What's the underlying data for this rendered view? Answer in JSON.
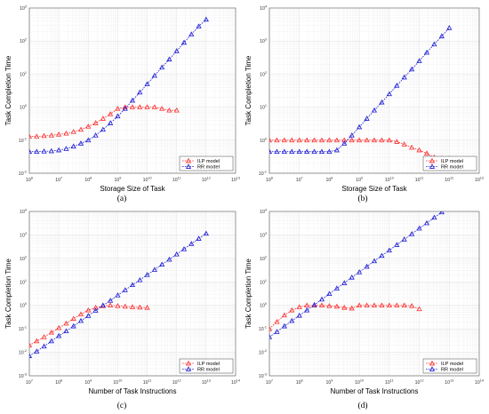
{
  "colors": {
    "ilp": "#ff2a2a",
    "rr": "#1a1ad6",
    "grid": "#e3e3e3",
    "axis": "#555555"
  },
  "chart_data": [
    {
      "id": "a",
      "type": "line",
      "caption": "(a)",
      "xlabel": "Storage Size of Task",
      "ylabel": "Task Completion Time",
      "xscale": "log",
      "yscale": "log",
      "xlim": [
        1000000,
        10000000000000
      ],
      "ylim": [
        0.01,
        1000
      ],
      "xticks": [
        "10^6",
        "10^7",
        "10^8",
        "10^9",
        "10^10",
        "10^11",
        "10^12",
        "10^13"
      ],
      "yticks": [
        "10^-2",
        "10^-1",
        "10^0",
        "10^1",
        "10^2",
        "10^3"
      ],
      "grid": true,
      "legend_position": "bottom-right",
      "series": [
        {
          "name": "ILP model",
          "color_key": "ilp",
          "x": [
            1000000.0,
            1780000.0,
            3160000.0,
            5620000.0,
            10000000.0,
            17800000.0,
            31600000.0,
            56200000.0,
            100000000.0,
            178000000.0,
            316000000.0,
            562000000.0,
            1000000000.0,
            1780000000.0,
            3160000000.0,
            5620000000.0,
            10000000000.0,
            17800000000.0,
            31600000000.0,
            56200000000.0,
            100000000000.0
          ],
          "y": [
            0.13,
            0.13,
            0.135,
            0.14,
            0.15,
            0.16,
            0.18,
            0.21,
            0.26,
            0.33,
            0.45,
            0.62,
            0.9,
            1.0,
            1.0,
            1.0,
            1.0,
            1.0,
            0.9,
            0.8,
            0.8
          ]
        },
        {
          "name": "RR model",
          "color_key": "rr",
          "x": [
            1000000.0,
            1780000.0,
            3160000.0,
            5620000.0,
            10000000.0,
            17800000.0,
            31600000.0,
            56200000.0,
            100000000.0,
            178000000.0,
            316000000.0,
            562000000.0,
            1000000000.0,
            1780000000.0,
            3160000000.0,
            5620000000.0,
            10000000000.0,
            17800000000.0,
            31600000000.0,
            56200000000.0,
            100000000000.0,
            178000000000.0,
            316000000000.0,
            562000000000.0,
            1000000000000.0
          ],
          "y": [
            0.045,
            0.045,
            0.046,
            0.047,
            0.05,
            0.055,
            0.065,
            0.08,
            0.1,
            0.14,
            0.21,
            0.33,
            0.53,
            0.9,
            1.6,
            2.8,
            5,
            9,
            16,
            28,
            50,
            90,
            160,
            280,
            450
          ]
        }
      ]
    },
    {
      "id": "b",
      "type": "line",
      "caption": "(b)",
      "xlabel": "Storage Size of Task",
      "ylabel": "Task Completion Time",
      "xscale": "log",
      "yscale": "log",
      "xlim": [
        1000000,
        10000000000000
      ],
      "ylim": [
        0.1,
        10000
      ],
      "xticks": [
        "10^6",
        "10^7",
        "10^8",
        "10^9",
        "10^10",
        "10^11",
        "10^12",
        "10^13"
      ],
      "yticks": [
        "10^-1",
        "10^0",
        "10^1",
        "10^2",
        "10^3",
        "10^4"
      ],
      "grid": true,
      "legend_position": "bottom-right",
      "series": [
        {
          "name": "ILP model",
          "color_key": "ilp",
          "x": [
            1000000.0,
            1780000.0,
            3160000.0,
            5620000.0,
            10000000.0,
            17800000.0,
            31600000.0,
            56200000.0,
            100000000.0,
            178000000.0,
            316000000.0,
            562000000.0,
            1000000000.0,
            1780000000.0,
            3160000000.0,
            5620000000.0,
            10000000000.0,
            17800000000.0,
            31600000000.0,
            56200000000.0,
            100000000000.0,
            178000000000.0,
            316000000000.0,
            562000000000.0,
            1000000000000.0
          ],
          "y": [
            1,
            1,
            1,
            1,
            1,
            1,
            1,
            1,
            1,
            1,
            1,
            1,
            1,
            1,
            1,
            1,
            1,
            0.9,
            0.75,
            0.6,
            0.5,
            0.4,
            0.3,
            0.28,
            0.28
          ]
        },
        {
          "name": "RR model",
          "color_key": "rr",
          "x": [
            1000000.0,
            1780000.0,
            3160000.0,
            5620000.0,
            10000000.0,
            17800000.0,
            31600000.0,
            56200000.0,
            100000000.0,
            178000000.0,
            316000000.0,
            562000000.0,
            1000000000.0,
            1780000000.0,
            3160000000.0,
            5620000000.0,
            10000000000.0,
            17800000000.0,
            31600000000.0,
            56200000000.0,
            100000000000.0,
            178000000000.0,
            316000000000.0,
            562000000000.0,
            1000000000000.0
          ],
          "y": [
            0.45,
            0.45,
            0.45,
            0.45,
            0.45,
            0.45,
            0.45,
            0.45,
            0.45,
            0.5,
            0.8,
            1.4,
            2.5,
            4.5,
            8,
            14,
            25,
            45,
            80,
            140,
            250,
            450,
            800,
            1400,
            2500
          ]
        }
      ]
    },
    {
      "id": "c",
      "type": "line",
      "caption": "(c)",
      "xlabel": "Number of Task Instructions",
      "ylabel": "Task Completion Time",
      "xscale": "log",
      "yscale": "log",
      "xlim": [
        10000000,
        100000000000000
      ],
      "ylim": [
        0.001,
        10000
      ],
      "xticks": [
        "10^7",
        "10^8",
        "10^9",
        "10^10",
        "10^11",
        "10^12",
        "10^13",
        "10^14"
      ],
      "yticks": [
        "10^-3",
        "10^-2",
        "10^-1",
        "10^0",
        "10^1",
        "10^2",
        "10^3",
        "10^4"
      ],
      "grid": true,
      "legend_position": "bottom-right",
      "series": [
        {
          "name": "ILP model",
          "color_key": "ilp",
          "x": [
            10000000.0,
            17800000.0,
            31600000.0,
            56200000.0,
            100000000.0,
            178000000.0,
            316000000.0,
            562000000.0,
            1000000000.0,
            1780000000.0,
            3160000000.0,
            5620000000.0,
            10000000000.0,
            17800000000.0,
            31600000000.0,
            56200000000.0,
            100000000000.0
          ],
          "y": [
            0.02,
            0.03,
            0.045,
            0.07,
            0.11,
            0.17,
            0.27,
            0.42,
            0.62,
            0.8,
            0.95,
            1.0,
            0.95,
            0.9,
            0.85,
            0.82,
            0.8
          ]
        },
        {
          "name": "RR model",
          "color_key": "rr",
          "x": [
            10000000.0,
            17800000.0,
            31600000.0,
            56200000.0,
            100000000.0,
            178000000.0,
            316000000.0,
            562000000.0,
            1000000000.0,
            1780000000.0,
            3160000000.0,
            5620000000.0,
            10000000000.0,
            17800000000.0,
            31600000000.0,
            56200000000.0,
            100000000000.0,
            178000000000.0,
            316000000000.0,
            562000000000.0,
            1000000000000.0,
            1780000000000.0,
            3160000000000.0,
            5620000000000.0,
            10000000000000.0
          ],
          "y": [
            0.007,
            0.011,
            0.018,
            0.03,
            0.05,
            0.08,
            0.13,
            0.22,
            0.36,
            0.6,
            1.0,
            1.6,
            2.7,
            4.5,
            7.4,
            12,
            20,
            33,
            55,
            90,
            150,
            250,
            420,
            700,
            1150
          ]
        }
      ]
    },
    {
      "id": "d",
      "type": "line",
      "caption": "(d)",
      "xlabel": "Number of Task Instructions",
      "ylabel": "Task Completion Time",
      "xscale": "log",
      "yscale": "log",
      "xlim": [
        10000000,
        100000000000000
      ],
      "ylim": [
        0.001,
        10000
      ],
      "xticks": [
        "10^7",
        "10^8",
        "10^9",
        "10^10",
        "10^11",
        "10^12",
        "10^13",
        "10^14"
      ],
      "yticks": [
        "10^-3",
        "10^-2",
        "10^-1",
        "10^0",
        "10^1",
        "10^2",
        "10^3",
        "10^4"
      ],
      "grid": true,
      "legend_position": "bottom-right",
      "series": [
        {
          "name": "ILP model",
          "color_key": "ilp",
          "x": [
            10000000.0,
            17800000.0,
            31600000.0,
            56200000.0,
            100000000.0,
            178000000.0,
            316000000.0,
            562000000.0,
            1000000000.0,
            1780000000.0,
            3160000000.0,
            5620000000.0,
            10000000000.0,
            17800000000.0,
            31600000000.0,
            56200000000.0,
            100000000000.0,
            178000000000.0,
            316000000000.0,
            562000000000.0,
            1000000000000.0
          ],
          "y": [
            0.1,
            0.2,
            0.38,
            0.62,
            0.85,
            1.0,
            1.0,
            1.0,
            0.95,
            0.9,
            0.8,
            0.75,
            1.0,
            1.0,
            1.0,
            1.0,
            1.0,
            1.0,
            1.0,
            0.95,
            0.7
          ]
        },
        {
          "name": "RR model",
          "color_key": "rr",
          "x": [
            10000000.0,
            17800000.0,
            31600000.0,
            56200000.0,
            100000000.0,
            178000000.0,
            316000000.0,
            562000000.0,
            1000000000.0,
            1780000000.0,
            3160000000.0,
            5620000000.0,
            10000000000.0,
            17800000000.0,
            31600000000.0,
            56200000000.0,
            100000000000.0,
            178000000000.0,
            316000000000.0,
            562000000000.0,
            1000000000000.0,
            1780000000000.0,
            3160000000000.0,
            5620000000000.0,
            10000000000000.0
          ],
          "y": [
            0.045,
            0.075,
            0.13,
            0.22,
            0.37,
            0.62,
            1.05,
            1.8,
            3.1,
            5.3,
            9,
            15.5,
            26,
            45,
            77,
            130,
            220,
            380,
            650,
            1100,
            1900,
            3200,
            5500,
            9300,
            15500
          ]
        }
      ]
    }
  ]
}
